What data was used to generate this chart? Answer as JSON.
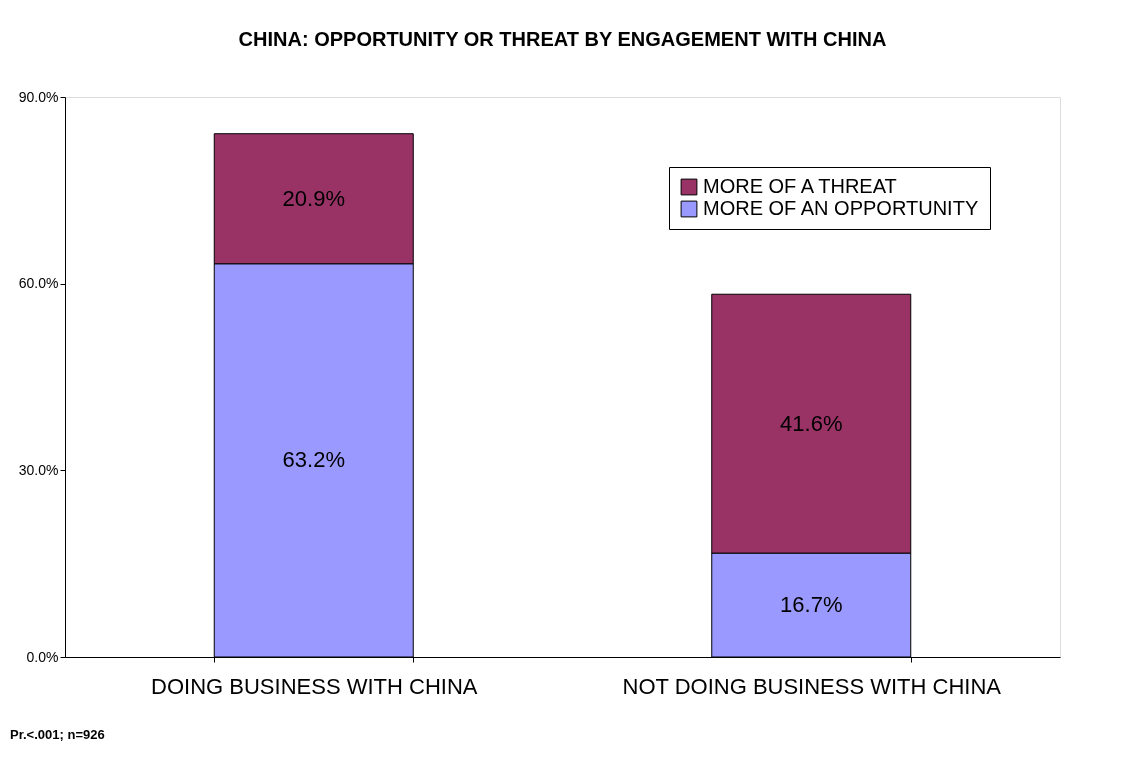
{
  "chart_data": {
    "type": "bar",
    "title": "CHINA: OPPORTUNITY OR THREAT BY ENGAGEMENT WITH CHINA",
    "categories": [
      "DOING BUSINESS WITH CHINA",
      "NOT DOING BUSINESS WITH CHINA"
    ],
    "series": [
      {
        "name": "MORE OF AN OPPORTUNITY",
        "color": "#9999ff",
        "values": [
          63.2,
          16.7
        ],
        "value_labels": [
          "63.2%",
          "16.7%"
        ]
      },
      {
        "name": "MORE OF A THREAT",
        "color": "#993366",
        "values": [
          20.9,
          41.6
        ],
        "value_labels": [
          "20.9%",
          "41.6%"
        ]
      }
    ],
    "stacked": true,
    "ylim": [
      0,
      90
    ],
    "yticks": [
      {
        "value": 0,
        "label": "0.0%"
      },
      {
        "value": 30,
        "label": "30.0%"
      },
      {
        "value": 60,
        "label": "60.0%"
      },
      {
        "value": 90,
        "label": "90.0%"
      }
    ],
    "grid": false,
    "legend": "top right",
    "annotations": [
      "Pr.<.001; n=926"
    ]
  }
}
